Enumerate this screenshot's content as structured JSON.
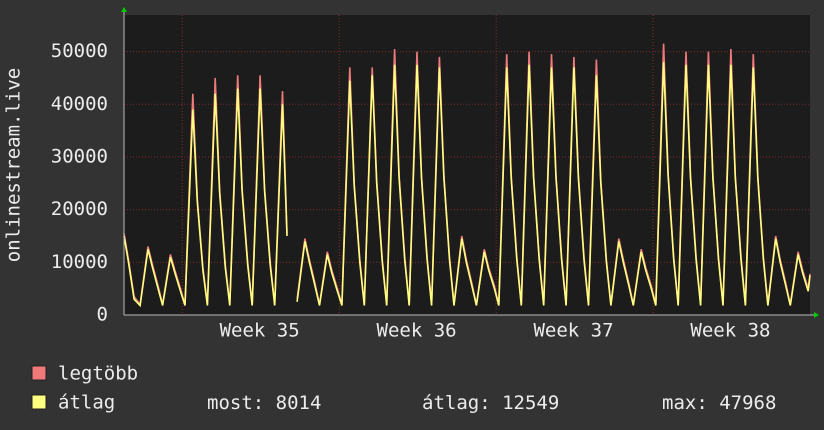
{
  "chart_data": {
    "type": "line",
    "y_label": "onlinestream.live",
    "xlim": [
      0,
      30.6
    ],
    "ylim": [
      0,
      56000
    ],
    "yticks": [
      0,
      10000,
      20000,
      30000,
      40000,
      50000
    ],
    "xticks": [
      {
        "value": 6.05,
        "label": "Week 35"
      },
      {
        "value": 13.05,
        "label": "Week 36"
      },
      {
        "value": 20.05,
        "label": "Week 37"
      },
      {
        "value": 27.05,
        "label": "Week 38"
      }
    ],
    "xgrid": [
      2.6,
      9.6,
      16.6,
      23.6
    ],
    "grid": true,
    "x": [
      0,
      0.2,
      0.45,
      0.72,
      1.07,
      1.27,
      1.52,
      1.72,
      2.07,
      2.27,
      2.52,
      2.72,
      3.07,
      3.27,
      3.52,
      3.72,
      4.07,
      4.27,
      4.52,
      4.72,
      5.07,
      5.27,
      5.52,
      5.72,
      6.07,
      6.27,
      6.52,
      6.72,
      7.07,
      7.27,
      7.52,
      7.72,
      8.07,
      8.27,
      8.52,
      8.72,
      9.07,
      9.27,
      9.52,
      9.72,
      10.07,
      10.27,
      10.52,
      10.72,
      11.07,
      11.27,
      11.52,
      11.72,
      12.07,
      12.27,
      12.52,
      12.72,
      13.07,
      13.27,
      13.52,
      13.72,
      14.07,
      14.27,
      14.52,
      14.72,
      15.07,
      15.27,
      15.52,
      15.72,
      16.07,
      16.27,
      16.52,
      16.72,
      17.07,
      17.27,
      17.52,
      17.72,
      18.07,
      18.27,
      18.52,
      18.72,
      19.07,
      19.27,
      19.52,
      19.72,
      20.07,
      20.27,
      20.52,
      20.72,
      21.07,
      21.27,
      21.52,
      21.72,
      22.07,
      22.27,
      22.52,
      22.72,
      23.07,
      23.27,
      23.52,
      23.72,
      24.07,
      24.27,
      24.52,
      24.72,
      25.07,
      25.27,
      25.52,
      25.72,
      26.07,
      26.27,
      26.52,
      26.72,
      27.07,
      27.27,
      27.52,
      27.72,
      28.07,
      28.27,
      28.52,
      28.72,
      29.07,
      29.27,
      29.52,
      29.72,
      30.07,
      30.27,
      30.52,
      30.6
    ],
    "series": [
      {
        "name": "legtöbb",
        "color": "#f07a7a",
        "values": [
          15500,
          10500,
          3500,
          2000,
          13000,
          9500,
          5500,
          2000,
          11500,
          8500,
          5000,
          2000,
          42000,
          22000,
          9000,
          2000,
          45000,
          23500,
          9500,
          2000,
          45500,
          24000,
          10000,
          2000,
          45500,
          24000,
          10000,
          2000,
          42500,
          15500,
          null,
          3000,
          14500,
          10500,
          6000,
          2000,
          12000,
          8500,
          5000,
          2000,
          47000,
          25000,
          10500,
          2000,
          47000,
          25500,
          10500,
          2000,
          50500,
          26500,
          11000,
          2000,
          50000,
          26500,
          11000,
          2000,
          49000,
          26500,
          11000,
          2000,
          15000,
          10500,
          6000,
          2000,
          12500,
          9000,
          5500,
          2000,
          49500,
          26500,
          11000,
          2000,
          50000,
          26500,
          11000,
          2000,
          49500,
          26500,
          11000,
          2000,
          49000,
          26500,
          11000,
          2000,
          48500,
          25500,
          10500,
          2000,
          14500,
          10500,
          6000,
          2000,
          12500,
          9000,
          5500,
          2000,
          51500,
          27000,
          11000,
          2000,
          50000,
          26500,
          11000,
          2000,
          50000,
          26500,
          11000,
          2000,
          50500,
          26500,
          11000,
          2000,
          49500,
          26500,
          11000,
          2000,
          15000,
          10500,
          6000,
          2000,
          12000,
          8500,
          5000,
          7800
        ]
      },
      {
        "name": "átlag",
        "color": "#ffff80",
        "values": [
          15000,
          10000,
          3000,
          1800,
          12500,
          9000,
          5000,
          1800,
          11000,
          8000,
          4500,
          1800,
          39000,
          21500,
          8500,
          1800,
          42000,
          23000,
          9000,
          1800,
          43000,
          23500,
          9500,
          1800,
          43000,
          23500,
          9500,
          1800,
          40000,
          15000,
          null,
          2500,
          14000,
          10000,
          5500,
          1800,
          11500,
          8000,
          4500,
          1800,
          44500,
          24500,
          10000,
          1800,
          45500,
          25000,
          10000,
          1800,
          47500,
          26000,
          10500,
          1800,
          47500,
          26000,
          10500,
          1800,
          47000,
          26000,
          10500,
          1800,
          14500,
          10000,
          5500,
          1800,
          12000,
          8500,
          5000,
          1800,
          47000,
          26000,
          10500,
          1800,
          47500,
          26000,
          10500,
          1800,
          47000,
          26000,
          10500,
          1800,
          47000,
          26000,
          10500,
          1800,
          45500,
          25000,
          10000,
          1800,
          14000,
          10000,
          5500,
          1800,
          12000,
          8500,
          5000,
          1800,
          48000,
          26500,
          10500,
          1800,
          47500,
          26000,
          10500,
          1800,
          47500,
          26000,
          10500,
          1800,
          47500,
          26000,
          10500,
          1800,
          47000,
          26000,
          10500,
          1800,
          14500,
          10000,
          5500,
          1800,
          11500,
          8000,
          4500,
          7500
        ]
      }
    ],
    "stats": [
      {
        "label": "most:",
        "value": 8014
      },
      {
        "label": "átlag:",
        "value": 12549
      },
      {
        "label": "max:",
        "value": 47968
      }
    ]
  }
}
